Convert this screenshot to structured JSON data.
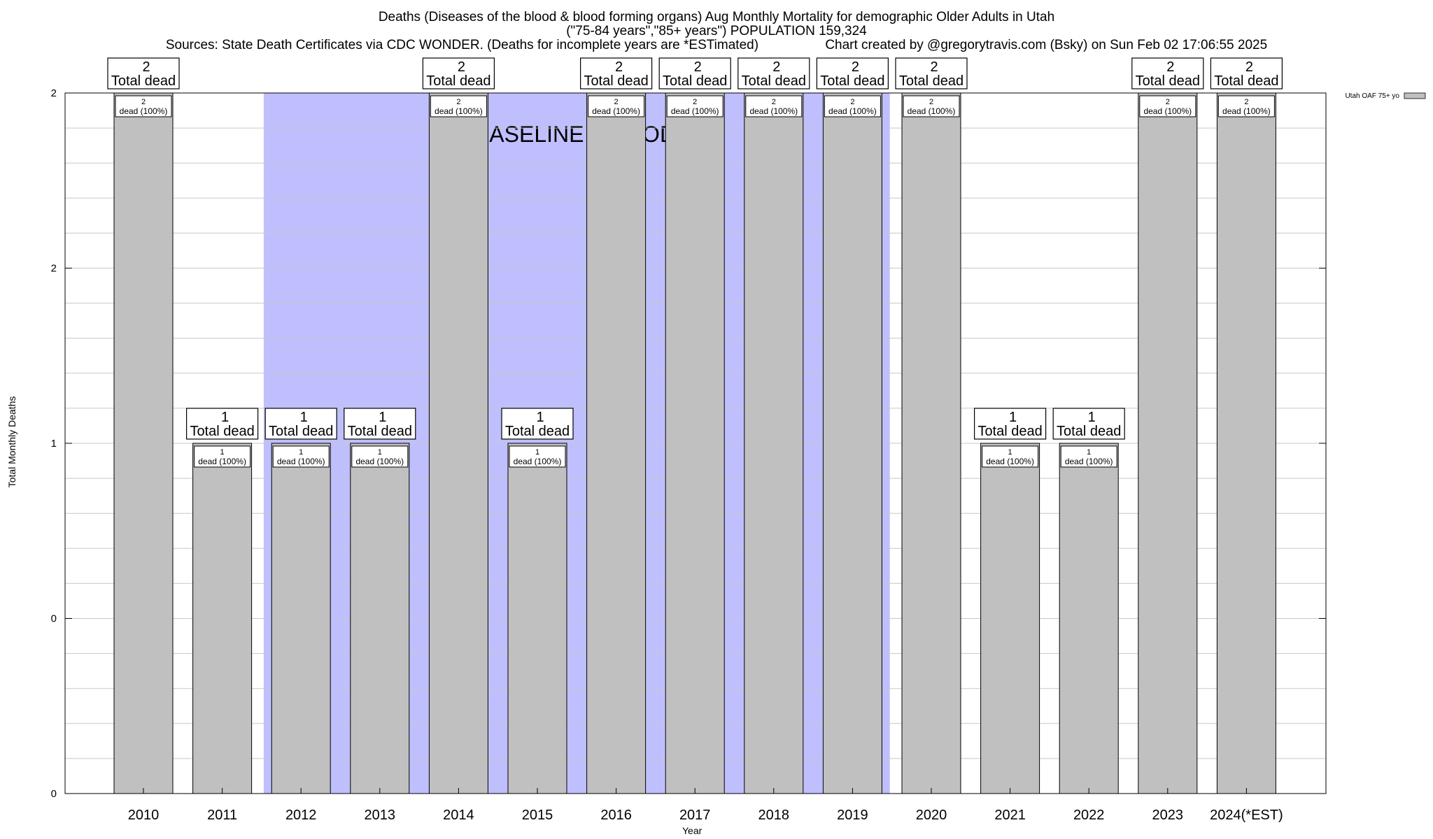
{
  "header": {
    "title_line1": "Deaths (Diseases of the blood & blood forming organs) Aug Monthly Mortality for demographic Older Adults in Utah",
    "title_line2": "(\"75-84 years\",\"85+ years\") POPULATION 159,324",
    "sources": "Sources: State Death Certificates via CDC WONDER. (Deaths for incomplete years are *ESTimated)",
    "credit": "Chart created by @gregorytravis.com (Bsky) on Sun Feb 02 17:06:55 2025"
  },
  "chart_data": {
    "type": "bar",
    "xlabel": "Year",
    "ylabel": "Total Monthly Deaths",
    "categories": [
      "2010",
      "2011",
      "2012",
      "2013",
      "2014",
      "2015",
      "2016",
      "2017",
      "2018",
      "2019",
      "2020",
      "2021",
      "2022",
      "2023",
      "2024(*EST)"
    ],
    "series": [
      {
        "name": "Utah OAF 75+ yo",
        "values": [
          2,
          1,
          1,
          1,
          2,
          1,
          2,
          2,
          2,
          2,
          2,
          1,
          1,
          2,
          2
        ]
      }
    ],
    "total_label_suffix": "Total dead",
    "bar_label_suffix": "dead (100%)",
    "y_tick_labels": [
      "0",
      "0",
      "1",
      "2",
      "2"
    ],
    "ylim": [
      0,
      2
    ],
    "grid": true,
    "legend_position": "top-right",
    "baseline_period": {
      "label": "BASELINE PERIOD",
      "from": "2012",
      "to": "2019"
    },
    "colors": {
      "bar": "#c0c0c0",
      "baseline": "#bfbffe",
      "grid": "#c8c8c8"
    }
  }
}
